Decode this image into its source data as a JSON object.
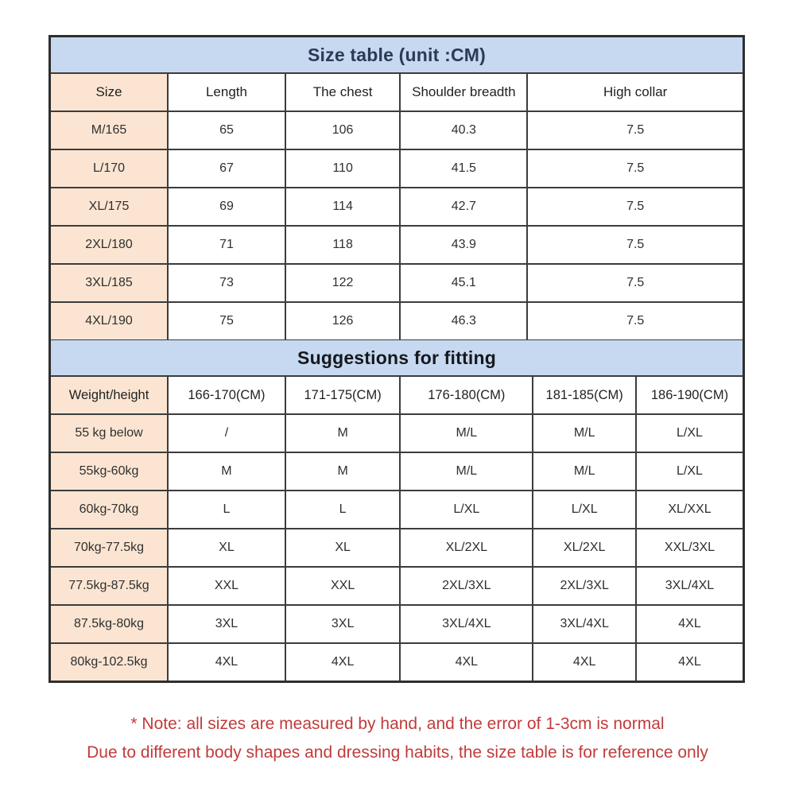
{
  "size_table": {
    "title": "Size table (unit :CM)",
    "columns": [
      "Size",
      "Length",
      "The chest",
      "Shoulder breadth",
      "High collar"
    ],
    "rows": [
      [
        "M/165",
        "65",
        "106",
        "40.3",
        "7.5"
      ],
      [
        "L/170",
        "67",
        "110",
        "41.5",
        "7.5"
      ],
      [
        "XL/175",
        "69",
        "114",
        "42.7",
        "7.5"
      ],
      [
        "2XL/180",
        "71",
        "118",
        "43.9",
        "7.5"
      ],
      [
        "3XL/185",
        "73",
        "122",
        "45.1",
        "7.5"
      ],
      [
        "4XL/190",
        "75",
        "126",
        "46.3",
        "7.5"
      ]
    ]
  },
  "fitting_table": {
    "title": "Suggestions for fitting",
    "columns": [
      "Weight/height",
      "166-170(CM)",
      "171-175(CM)",
      "176-180(CM)",
      "181-185(CM)",
      "186-190(CM)"
    ],
    "rows": [
      [
        "55 kg below",
        "/",
        "M",
        "M/L",
        "M/L",
        "L/XL"
      ],
      [
        "55kg-60kg",
        "M",
        "M",
        "M/L",
        "M/L",
        "L/XL"
      ],
      [
        "60kg-70kg",
        "L",
        "L",
        "L/XL",
        "L/XL",
        "XL/XXL"
      ],
      [
        "70kg-77.5kg",
        "XL",
        "XL",
        "XL/2XL",
        "XL/2XL",
        "XXL/3XL"
      ],
      [
        "77.5kg-87.5kg",
        "XXL",
        "XXL",
        "2XL/3XL",
        "2XL/3XL",
        "3XL/4XL"
      ],
      [
        "87.5kg-80kg",
        "3XL",
        "3XL",
        "3XL/4XL",
        "3XL/4XL",
        "4XL"
      ],
      [
        "80kg-102.5kg",
        "4XL",
        "4XL",
        "4XL",
        "4XL",
        "4XL"
      ]
    ]
  },
  "notes": {
    "line1": "* Note: all sizes are measured by hand, and the error of 1-3cm is normal",
    "line2": "Due to different body shapes and dressing habits, the size table is for reference only"
  },
  "colors": {
    "header_band_bg": "#c6d9f0",
    "label_cell_bg": "#fbe5d2",
    "border": "#3c3c3c",
    "size_title_text": "#2c3a55",
    "fitting_title_text": "#16181f",
    "note_text": "#c23b3b"
  }
}
